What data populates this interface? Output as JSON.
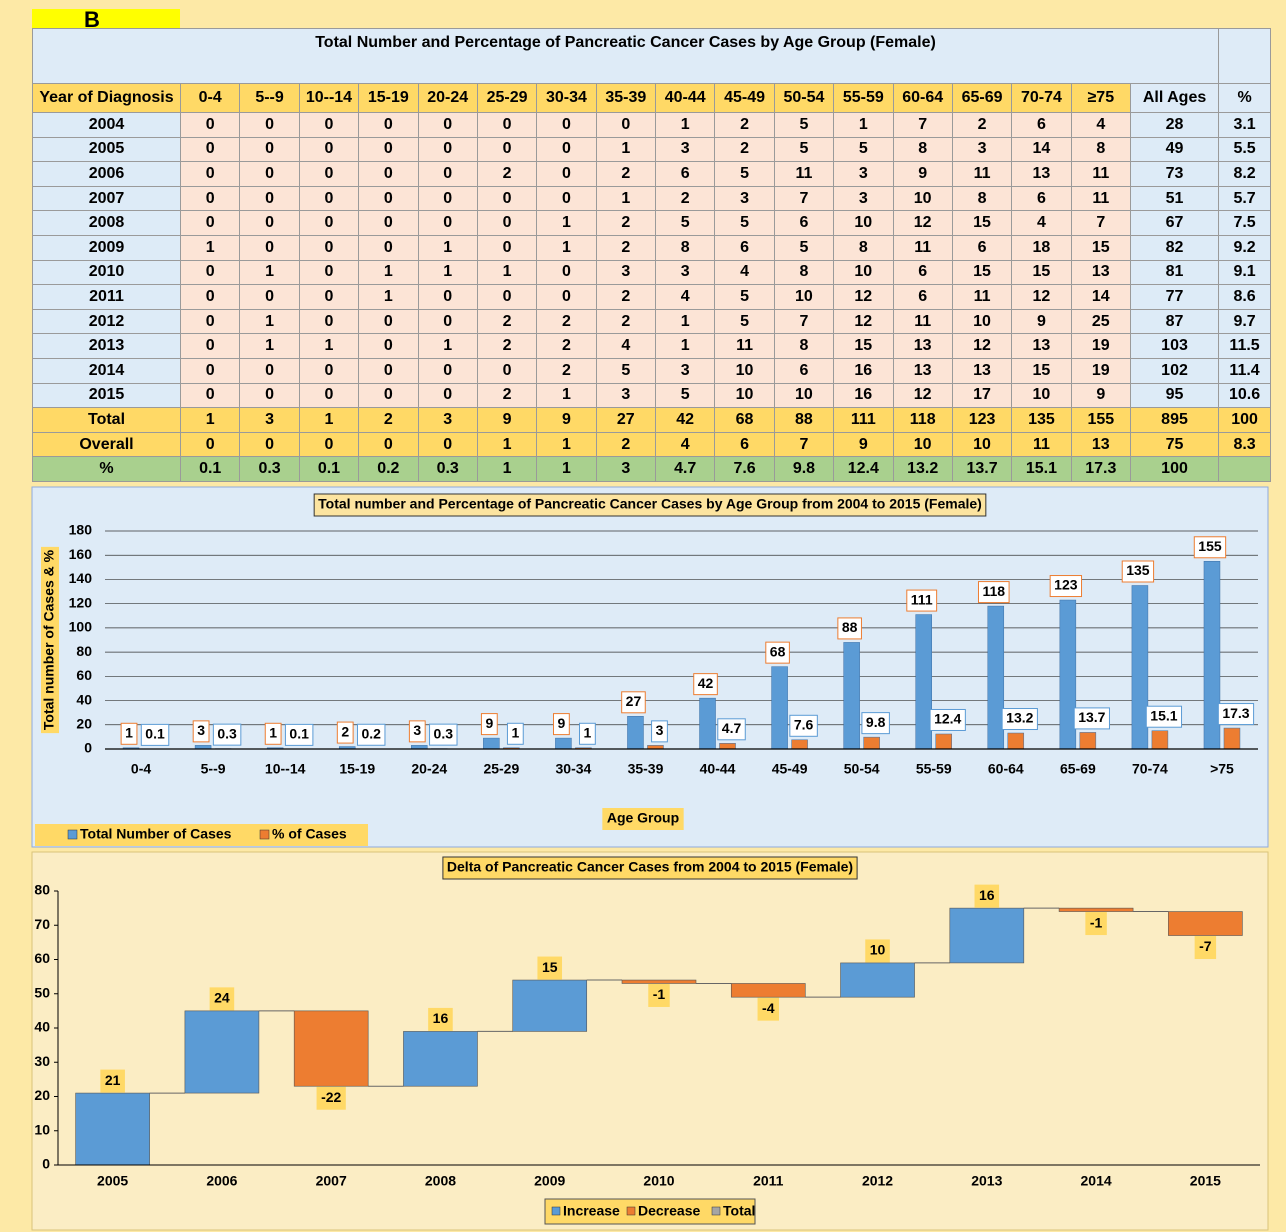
{
  "label": "B",
  "table": {
    "title": "Total Number and Percentage of Pancreatic Cancer Cases by Age Group (Female)",
    "header": [
      "Year of Diagnosis",
      "0-4",
      "5--9",
      "10--14",
      "15-19",
      "20-24",
      "25-29",
      "30-34",
      "35-39",
      "40-44",
      "45-49",
      "50-54",
      "55-59",
      "60-64",
      "65-69",
      "70-74",
      "≥75",
      "All Ages",
      "%"
    ],
    "rows": [
      [
        "2004",
        0,
        0,
        0,
        0,
        0,
        0,
        0,
        0,
        1,
        2,
        5,
        1,
        7,
        2,
        6,
        4,
        28,
        3.1
      ],
      [
        "2005",
        0,
        0,
        0,
        0,
        0,
        0,
        0,
        1,
        3,
        2,
        5,
        5,
        8,
        3,
        14,
        8,
        49,
        5.5
      ],
      [
        "2006",
        0,
        0,
        0,
        0,
        0,
        2,
        0,
        2,
        6,
        5,
        11,
        3,
        9,
        11,
        13,
        11,
        73,
        8.2
      ],
      [
        "2007",
        0,
        0,
        0,
        0,
        0,
        0,
        0,
        1,
        2,
        3,
        7,
        3,
        10,
        8,
        6,
        11,
        51,
        5.7
      ],
      [
        "2008",
        0,
        0,
        0,
        0,
        0,
        0,
        1,
        2,
        5,
        5,
        6,
        10,
        12,
        15,
        4,
        7,
        67,
        7.5
      ],
      [
        "2009",
        1,
        0,
        0,
        0,
        1,
        0,
        1,
        2,
        8,
        6,
        5,
        8,
        11,
        6,
        18,
        15,
        82,
        9.2
      ],
      [
        "2010",
        0,
        1,
        0,
        1,
        1,
        1,
        0,
        3,
        3,
        4,
        8,
        10,
        6,
        15,
        15,
        13,
        81,
        9.1
      ],
      [
        "2011",
        0,
        0,
        0,
        1,
        0,
        0,
        0,
        2,
        4,
        5,
        10,
        12,
        6,
        11,
        12,
        14,
        77,
        8.6
      ],
      [
        "2012",
        0,
        1,
        0,
        0,
        0,
        2,
        2,
        2,
        1,
        5,
        7,
        12,
        11,
        10,
        9,
        25,
        87,
        9.7
      ],
      [
        "2013",
        0,
        1,
        1,
        0,
        1,
        2,
        2,
        4,
        1,
        11,
        8,
        15,
        13,
        12,
        13,
        19,
        103,
        11.5
      ],
      [
        "2014",
        0,
        0,
        0,
        0,
        0,
        0,
        2,
        5,
        3,
        10,
        6,
        16,
        13,
        13,
        15,
        19,
        102,
        11.4
      ],
      [
        "2015",
        0,
        0,
        0,
        0,
        0,
        2,
        1,
        3,
        5,
        10,
        10,
        16,
        12,
        17,
        10,
        9,
        95,
        10.6
      ],
      [
        "Total",
        1,
        3,
        1,
        2,
        3,
        9,
        9,
        27,
        42,
        68,
        88,
        111,
        118,
        123,
        135,
        155,
        895,
        100
      ],
      [
        "Overall",
        0,
        0,
        0,
        0,
        0,
        1,
        1,
        2,
        4,
        6,
        7,
        9,
        10,
        10,
        11,
        13,
        75,
        8.3
      ],
      [
        "%",
        0.1,
        0.3,
        0.1,
        0.2,
        0.3,
        1,
        1,
        3,
        4.7,
        7.6,
        9.8,
        12.4,
        13.2,
        13.7,
        15.1,
        17.3,
        100
      ]
    ]
  },
  "chart_data": [
    {
      "type": "bar",
      "title": "Total number and Percentage of Pancreatic Cancer Cases by Age Group from 2004 to 2015 (Female)",
      "x_label": "Age Group",
      "y_label": "Total number of Cases & %",
      "categories": [
        "0-4",
        "5--9",
        "10--14",
        "15-19",
        "20-24",
        "25-29",
        "30-34",
        "35-39",
        "40-44",
        "45-49",
        "50-54",
        "55-59",
        "60-64",
        "65-69",
        "70-74",
        ">75"
      ],
      "series": [
        {
          "name": "Total Number of Cases",
          "color": "#5b9bd5",
          "values": [
            1,
            3,
            1,
            2,
            3,
            9,
            9,
            27,
            42,
            68,
            88,
            111,
            118,
            123,
            135,
            155
          ]
        },
        {
          "name": "% of Cases",
          "color": "#ed7d31",
          "values": [
            0.1,
            0.3,
            0.1,
            0.2,
            0.3,
            1,
            1,
            3,
            4.7,
            7.6,
            9.8,
            12.4,
            13.2,
            13.7,
            15.1,
            17.3
          ]
        }
      ],
      "ylim": [
        0,
        180
      ],
      "yticks": [
        0,
        20,
        40,
        60,
        80,
        100,
        120,
        140,
        160,
        180
      ],
      "grid": true,
      "legend": "bottom-left"
    },
    {
      "type": "waterfall",
      "title": "Delta of Pancreatic Cancer Cases from 2004 to 2015 (Female)",
      "categories": [
        "2005",
        "2006",
        "2007",
        "2008",
        "2009",
        "2010",
        "2011",
        "2012",
        "2013",
        "2014",
        "2015"
      ],
      "values": [
        21,
        24,
        -22,
        16,
        15,
        -1,
        -4,
        10,
        16,
        -1,
        -7
      ],
      "series": [
        {
          "name": "Increase",
          "color": "#5b9bd5"
        },
        {
          "name": "Decrease",
          "color": "#ed7d31"
        },
        {
          "name": "Total",
          "color": "#a5a5a5"
        }
      ],
      "ylim": [
        0,
        80
      ],
      "yticks": [
        0,
        10,
        20,
        30,
        40,
        50,
        60,
        70,
        80
      ],
      "grid": false,
      "legend": "bottom"
    }
  ]
}
